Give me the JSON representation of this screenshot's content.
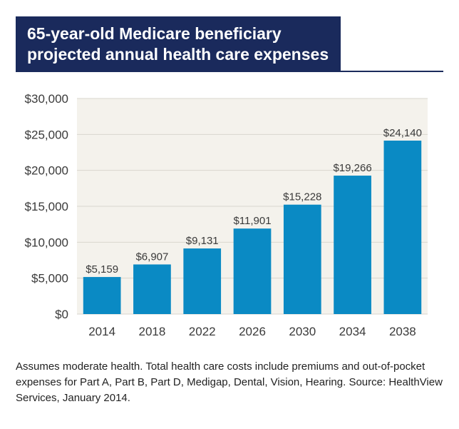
{
  "title": {
    "line1": "65-year-old Medicare beneficiary",
    "line2": "projected annual health care expenses"
  },
  "footnote": "Assumes moderate health. Total health care costs include premiums and out-of-pocket expenses for Part A, Part B, Part D, Medigap, Dental, Vision, Hearing. Source: HealthView Services, January 2014.",
  "colors": {
    "banner": "#1a2a5c",
    "bar": "#0a8ac4",
    "plot_background": "#f4f2ec",
    "grid": "#d9d6ce",
    "text": "#3a3a3a"
  },
  "chart_data": {
    "type": "bar",
    "title": "65-year-old Medicare beneficiary projected annual health care expenses",
    "xlabel": "",
    "ylabel": "",
    "categories": [
      "2014",
      "2018",
      "2022",
      "2026",
      "2030",
      "2034",
      "2038"
    ],
    "values": [
      5159,
      6907,
      9131,
      11901,
      15228,
      19266,
      24140
    ],
    "data_labels": [
      "$5,159",
      "$6,907",
      "$9,131",
      "$11,901",
      "$15,228",
      "$19,266",
      "$24,140"
    ],
    "ylim": [
      0,
      30000
    ],
    "yticks": [
      0,
      5000,
      10000,
      15000,
      20000,
      25000,
      30000
    ],
    "ytick_labels": [
      "$0",
      "$5,000",
      "$10,000",
      "$15,000",
      "$20,000",
      "$25,000",
      "$30,000"
    ],
    "grid": true,
    "legend": "none"
  }
}
